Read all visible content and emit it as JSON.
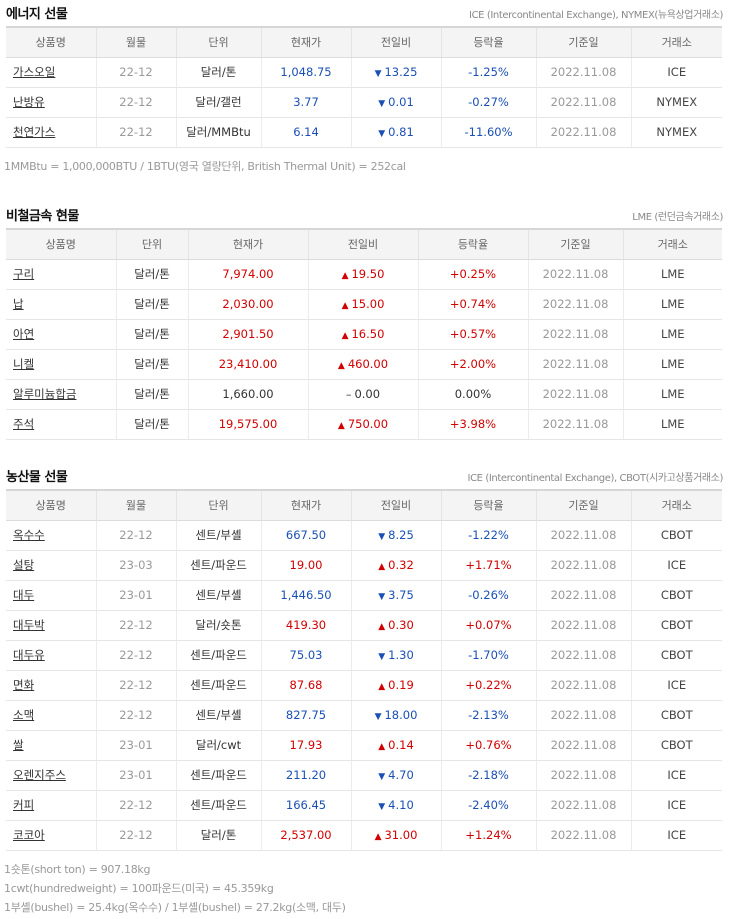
{
  "energy": {
    "title": "에너지 선물",
    "source": "ICE (Intercontinental Exchange), NYMEX(뉴욕상업거래소)",
    "headers": [
      "상품명",
      "월물",
      "단위",
      "현재가",
      "전일비",
      "등락율",
      "기준일",
      "거래소"
    ],
    "rows": [
      {
        "name": "가스오일",
        "month": "22-12",
        "unit": "달러/톤",
        "price": "1,048.75",
        "dir": "down",
        "change": "13.25",
        "rate": "-1.25%",
        "date": "2022.11.08",
        "exchange": "ICE"
      },
      {
        "name": "난방유",
        "month": "22-12",
        "unit": "달러/갤런",
        "price": "3.77",
        "dir": "down",
        "change": "0.01",
        "rate": "-0.27%",
        "date": "2022.11.08",
        "exchange": "NYMEX"
      },
      {
        "name": "천연가스",
        "month": "22-12",
        "unit": "달러/MMBtu",
        "price": "6.14",
        "dir": "down",
        "change": "0.81",
        "rate": "-11.60%",
        "date": "2022.11.08",
        "exchange": "NYMEX"
      }
    ],
    "notes": [
      "1MMBtu = 1,000,000BTU / 1BTU(영국 열량단위, British Thermal Unit) = 252cal"
    ]
  },
  "metals": {
    "title": "비철금속 현물",
    "source": "LME (런던금속거래소)",
    "headers": [
      "상품명",
      "단위",
      "현재가",
      "전일비",
      "등락율",
      "기준일",
      "거래소"
    ],
    "rows": [
      {
        "name": "구리",
        "unit": "달러/톤",
        "price": "7,974.00",
        "dir": "up",
        "change": "19.50",
        "rate": "+0.25%",
        "date": "2022.11.08",
        "exchange": "LME"
      },
      {
        "name": "납",
        "unit": "달러/톤",
        "price": "2,030.00",
        "dir": "up",
        "change": "15.00",
        "rate": "+0.74%",
        "date": "2022.11.08",
        "exchange": "LME"
      },
      {
        "name": "아연",
        "unit": "달러/톤",
        "price": "2,901.50",
        "dir": "up",
        "change": "16.50",
        "rate": "+0.57%",
        "date": "2022.11.08",
        "exchange": "LME"
      },
      {
        "name": "니켈",
        "unit": "달러/톤",
        "price": "23,410.00",
        "dir": "up",
        "change": "460.00",
        "rate": "+2.00%",
        "date": "2022.11.08",
        "exchange": "LME"
      },
      {
        "name": "알루미늄합금",
        "unit": "달러/톤",
        "price": "1,660.00",
        "dir": "flat",
        "change": "0.00",
        "rate": "0.00%",
        "date": "2022.11.08",
        "exchange": "LME"
      },
      {
        "name": "주석",
        "unit": "달러/톤",
        "price": "19,575.00",
        "dir": "up",
        "change": "750.00",
        "rate": "+3.98%",
        "date": "2022.11.08",
        "exchange": "LME"
      }
    ]
  },
  "agri": {
    "title": "농산물 선물",
    "source": "ICE (Intercontinental Exchange), CBOT(시카고상품거래소)",
    "headers": [
      "상품명",
      "월물",
      "단위",
      "현재가",
      "전일비",
      "등락율",
      "기준일",
      "거래소"
    ],
    "rows": [
      {
        "name": "옥수수",
        "month": "22-12",
        "unit": "센트/부셸",
        "price": "667.50",
        "dir": "down",
        "change": "8.25",
        "rate": "-1.22%",
        "date": "2022.11.08",
        "exchange": "CBOT"
      },
      {
        "name": "설탕",
        "month": "23-03",
        "unit": "센트/파운드",
        "price": "19.00",
        "dir": "up",
        "change": "0.32",
        "rate": "+1.71%",
        "date": "2022.11.08",
        "exchange": "ICE"
      },
      {
        "name": "대두",
        "month": "23-01",
        "unit": "센트/부셸",
        "price": "1,446.50",
        "dir": "down",
        "change": "3.75",
        "rate": "-0.26%",
        "date": "2022.11.08",
        "exchange": "CBOT"
      },
      {
        "name": "대두박",
        "month": "22-12",
        "unit": "달러/숏톤",
        "price": "419.30",
        "dir": "up",
        "change": "0.30",
        "rate": "+0.07%",
        "date": "2022.11.08",
        "exchange": "CBOT"
      },
      {
        "name": "대두유",
        "month": "22-12",
        "unit": "센트/파운드",
        "price": "75.03",
        "dir": "down",
        "change": "1.30",
        "rate": "-1.70%",
        "date": "2022.11.08",
        "exchange": "CBOT"
      },
      {
        "name": "면화",
        "month": "22-12",
        "unit": "센트/파운드",
        "price": "87.68",
        "dir": "up",
        "change": "0.19",
        "rate": "+0.22%",
        "date": "2022.11.08",
        "exchange": "ICE"
      },
      {
        "name": "소맥",
        "month": "22-12",
        "unit": "센트/부셸",
        "price": "827.75",
        "dir": "down",
        "change": "18.00",
        "rate": "-2.13%",
        "date": "2022.11.08",
        "exchange": "CBOT"
      },
      {
        "name": "쌀",
        "month": "23-01",
        "unit": "달러/cwt",
        "price": "17.93",
        "dir": "up",
        "change": "0.14",
        "rate": "+0.76%",
        "date": "2022.11.08",
        "exchange": "CBOT"
      },
      {
        "name": "오렌지주스",
        "month": "23-01",
        "unit": "센트/파운드",
        "price": "211.20",
        "dir": "down",
        "change": "4.70",
        "rate": "-2.18%",
        "date": "2022.11.08",
        "exchange": "ICE"
      },
      {
        "name": "커피",
        "month": "22-12",
        "unit": "센트/파운드",
        "price": "166.45",
        "dir": "down",
        "change": "4.10",
        "rate": "-2.40%",
        "date": "2022.11.08",
        "exchange": "ICE"
      },
      {
        "name": "코코아",
        "month": "22-12",
        "unit": "달러/톤",
        "price": "2,537.00",
        "dir": "up",
        "change": "31.00",
        "rate": "+1.24%",
        "date": "2022.11.08",
        "exchange": "ICE"
      }
    ],
    "notes": [
      "1숏톤(short ton) = 907.18kg",
      "1cwt(hundredweight) = 100파운드(미국) = 45.359kg",
      "1부셸(bushel) = 25.4kg(옥수수) / 1부셸(bushel) = 27.2kg(소맥, 대두)"
    ]
  }
}
